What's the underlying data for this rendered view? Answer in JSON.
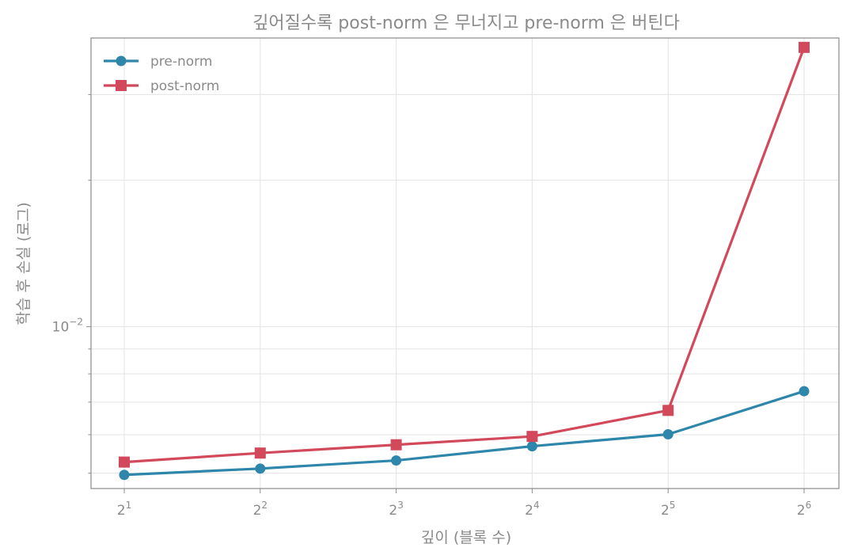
{
  "chart_data": {
    "type": "line",
    "title": "깊어질수록 post-norm 은 무너지고 pre-norm 은 버틴다",
    "xlabel": "깊이 (블록 수)",
    "ylabel": "학습 후 손실 (로그)",
    "x_scale": "log2",
    "y_scale": "log10",
    "x": [
      2,
      4,
      8,
      16,
      32,
      64
    ],
    "x_tick_labels": [
      {
        "base": "2",
        "exp": "1"
      },
      {
        "base": "2",
        "exp": "2"
      },
      {
        "base": "2",
        "exp": "3"
      },
      {
        "base": "2",
        "exp": "4"
      },
      {
        "base": "2",
        "exp": "5"
      },
      {
        "base": "2",
        "exp": "6"
      }
    ],
    "y_tick_labels": [
      {
        "value": 0.01,
        "base": "10",
        "exp": "−2"
      }
    ],
    "ylim": [
      0.00465,
      0.0392
    ],
    "grid": true,
    "legend_position": "top-left",
    "series": [
      {
        "name": "pre-norm",
        "color": "#2e86ab",
        "marker": "circle",
        "values": [
          0.00496,
          0.00511,
          0.00531,
          0.00568,
          0.00601,
          0.00737
        ]
      },
      {
        "name": "post-norm",
        "color": "#d1495b",
        "marker": "square",
        "values": [
          0.00527,
          0.0055,
          0.00572,
          0.00595,
          0.00673,
          0.0375
        ]
      }
    ]
  }
}
